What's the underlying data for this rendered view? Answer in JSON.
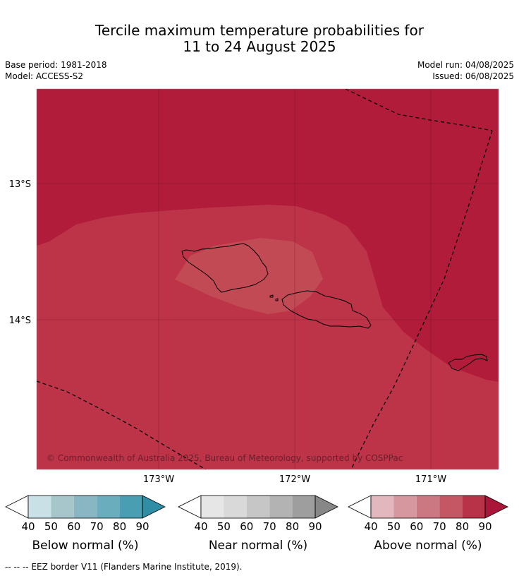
{
  "title": {
    "line1": "Tercile maximum temperature probabilities for",
    "line2": "11 to 24 August 2025"
  },
  "meta": {
    "base_period": "Base period: 1981-2018",
    "model": "Model: ACCESS-S2",
    "model_run": "Model run: 04/08/2025",
    "issued": "Issued: 06/08/2025"
  },
  "map": {
    "lat_labels": [
      "13°S",
      "14°S"
    ],
    "lon_labels": [
      "173°W",
      "172°W",
      "171°W"
    ],
    "copyright": "© Commonwealth of Australia 2025, Bureau of Meteorology, supported by COSPPac",
    "colors": {
      "above_90": "#b01c3a",
      "above_80": "#bd3348",
      "above_70": "#c24a55",
      "eez_line": "#000000",
      "coast": "#000000"
    }
  },
  "legends": [
    {
      "id": "below",
      "label": "Below normal (%)",
      "ticks": [
        "40",
        "50",
        "60",
        "70",
        "80",
        "90"
      ],
      "colors": [
        "#ffffff",
        "#c8e0e6",
        "#a6c6cc",
        "#89b6c2",
        "#6aaebd",
        "#4a9eb1",
        "#2e8ea6"
      ]
    },
    {
      "id": "near",
      "label": "Near normal (%)",
      "ticks": [
        "40",
        "50",
        "60",
        "70",
        "80",
        "90"
      ],
      "colors": [
        "#ffffff",
        "#e6e6e6",
        "#d9d9d9",
        "#c6c6c6",
        "#b3b3b3",
        "#9e9e9e",
        "#878787"
      ]
    },
    {
      "id": "above",
      "label": "Above normal (%)",
      "ticks": [
        "40",
        "50",
        "60",
        "70",
        "80",
        "90"
      ],
      "colors": [
        "#ffffff",
        "#e2b8be",
        "#d6979f",
        "#cc7882",
        "#c45763",
        "#b83347",
        "#a9163a"
      ]
    }
  ],
  "footnote": "--  --  -- EEZ border V11 (Flanders Marine Institute, 2019)."
}
